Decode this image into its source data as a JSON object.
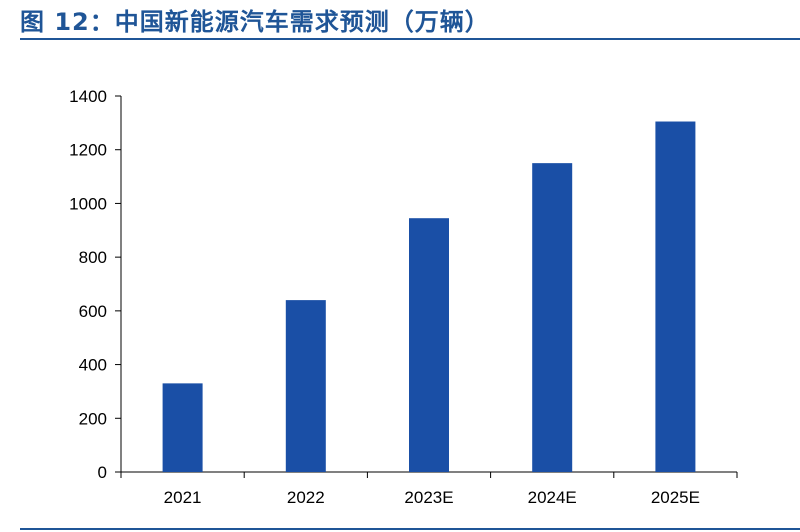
{
  "figure": {
    "title": "图 12：中国新能源汽车需求预测（万辆）"
  },
  "colors": {
    "title": "#1f5597",
    "bar": "#1a4fa6",
    "axis": "#000000"
  },
  "chart_data": {
    "type": "bar",
    "title": "图 12：中国新能源汽车需求预测（万辆）",
    "categories": [
      "2021",
      "2022",
      "2023E",
      "2024E",
      "2025E"
    ],
    "values": [
      330,
      640,
      945,
      1150,
      1305
    ],
    "xlabel": "",
    "ylabel": "",
    "ylim": [
      0,
      1400
    ],
    "yticks": [
      0,
      200,
      400,
      600,
      800,
      1000,
      1200,
      1400
    ],
    "grid": false,
    "legend": "none"
  }
}
